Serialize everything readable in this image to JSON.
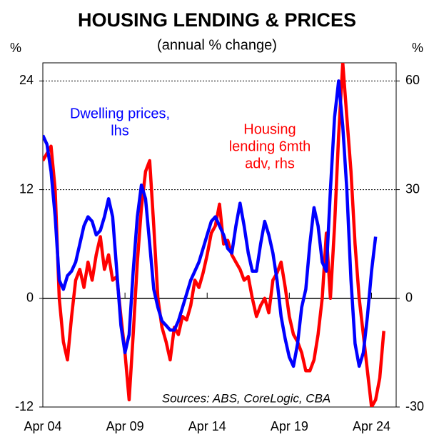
{
  "chart_data": {
    "type": "line",
    "title": "HOUSING LENDING & PRICES",
    "subtitle": "(annual % change)",
    "y_unit": "%",
    "y2_unit": "%",
    "annotations": {
      "prices": [
        "Dwelling prices,",
        "lhs"
      ],
      "lending": [
        "Housing",
        "lending 6mth",
        "adv, rhs"
      ],
      "source": "Sources: ABS, CoreLogic, CBA"
    },
    "x": [
      "2004-04",
      "2004-07",
      "2004-10",
      "2005-01",
      "2005-04",
      "2005-07",
      "2005-10",
      "2006-01",
      "2006-04",
      "2006-07",
      "2006-10",
      "2007-01",
      "2007-04",
      "2007-07",
      "2007-10",
      "2008-01",
      "2008-04",
      "2008-07",
      "2008-10",
      "2009-01",
      "2009-04",
      "2009-07",
      "2009-10",
      "2010-01",
      "2010-04",
      "2010-07",
      "2010-10",
      "2011-01",
      "2011-04",
      "2011-07",
      "2011-10",
      "2012-01",
      "2012-04",
      "2012-07",
      "2012-10",
      "2013-01",
      "2013-04",
      "2013-07",
      "2013-10",
      "2014-01",
      "2014-04",
      "2014-07",
      "2014-10",
      "2015-01",
      "2015-04",
      "2015-07",
      "2015-10",
      "2016-01",
      "2016-04",
      "2016-07",
      "2016-10",
      "2017-01",
      "2017-04",
      "2017-07",
      "2017-10",
      "2018-01",
      "2018-04",
      "2018-07",
      "2018-10",
      "2019-01",
      "2019-04",
      "2019-07",
      "2019-10",
      "2020-01",
      "2020-04",
      "2020-07",
      "2020-10",
      "2021-01",
      "2021-04",
      "2021-07",
      "2021-10",
      "2022-01",
      "2022-04",
      "2022-07",
      "2022-10",
      "2023-01",
      "2023-04",
      "2023-07",
      "2023-10",
      "2024-01",
      "2024-04",
      "2024-07",
      "2024-10",
      "2025-01"
    ],
    "series": [
      {
        "name": "Dwelling prices",
        "color": "#0000ff",
        "axis": "y",
        "values": [
          18,
          17,
          14,
          9,
          2,
          1,
          2.5,
          3,
          4,
          6,
          8,
          9,
          8.5,
          7,
          7.5,
          9,
          11,
          9,
          3,
          -3,
          -6,
          -4,
          3,
          9,
          12.5,
          11,
          6,
          1,
          -1,
          -2.5,
          -3,
          -3.5,
          -3.5,
          -2.5,
          -1,
          0.5,
          2,
          3,
          4,
          5.5,
          7,
          8.5,
          9,
          8,
          7,
          5.5,
          5,
          8,
          10.5,
          8,
          5,
          3,
          3,
          6,
          8.5,
          7,
          5,
          2,
          -2,
          -4.5,
          -6.5,
          -7.5,
          -5,
          -1,
          1,
          6,
          10,
          8,
          4,
          3,
          12,
          20,
          24,
          19,
          12,
          2,
          -5,
          -7.5,
          -6,
          -2,
          3,
          6.8,
          null,
          null
        ]
      },
      {
        "name": "Housing lending 6mth adv",
        "color": "#ff0000",
        "axis": "y2",
        "values": [
          38,
          40,
          42,
          30,
          0,
          -12,
          -17,
          -5,
          5,
          8,
          3,
          10,
          5,
          12,
          17,
          8,
          12,
          5,
          6,
          -5,
          -15,
          -28,
          -10,
          10,
          25,
          35,
          38,
          20,
          0,
          -8,
          -12,
          -17,
          -8,
          -10,
          -5,
          -6,
          -2,
          5,
          3,
          7,
          12,
          18,
          20,
          26,
          15,
          16,
          12,
          10,
          8,
          5,
          6,
          0,
          -5,
          -2,
          0,
          -4,
          5,
          7,
          10,
          3,
          -5,
          -10,
          -12,
          -15,
          -20,
          -20,
          -17,
          -10,
          0,
          18,
          0,
          20,
          45,
          65,
          50,
          35,
          15,
          0,
          -10,
          -20,
          -30,
          -28,
          -22,
          -9
        ]
      }
    ],
    "xlim": [
      "2004-04",
      "2025-10"
    ],
    "xticks": [
      {
        "value": "2004-04",
        "label": "Apr 04"
      },
      {
        "value": "2009-04",
        "label": "Apr 09"
      },
      {
        "value": "2014-04",
        "label": "Apr 14"
      },
      {
        "value": "2019-04",
        "label": "Apr 19"
      },
      {
        "value": "2024-04",
        "label": "Apr 24"
      }
    ],
    "ylim": [
      -12,
      26
    ],
    "yticks": [
      -12,
      0,
      12,
      24
    ],
    "y2lim": [
      -30,
      65
    ],
    "y2ticks": [
      -30,
      0,
      30,
      60
    ],
    "grid": true
  }
}
